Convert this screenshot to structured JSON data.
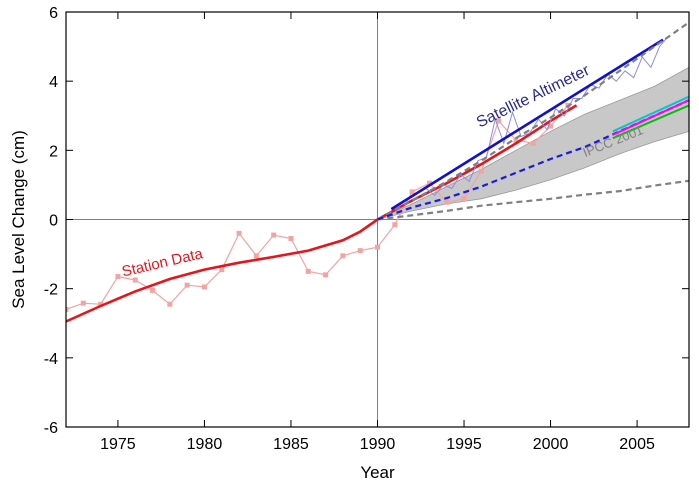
{
  "chart_data": {
    "type": "line",
    "xlabel": "Year",
    "ylabel": "Sea Level Change (cm)",
    "xlim": [
      1972,
      2008
    ],
    "ylim": [
      -6,
      6
    ],
    "x_ticks": [
      1975,
      1980,
      1985,
      1990,
      1995,
      2000,
      2005
    ],
    "y_ticks": [
      -6,
      -4,
      -2,
      0,
      2,
      4,
      6
    ],
    "reference_lines": {
      "x": 1990,
      "y": 0
    },
    "annotations": [
      {
        "text": "Station Data",
        "color": "#e8141c",
        "x": 1975.3,
        "y": -1.65,
        "angle": -13,
        "size": 15
      },
      {
        "text": "Satellite Altimeter",
        "color": "#2b2b8f",
        "x": 1995.9,
        "y": 2.65,
        "angle": -26,
        "size": 16
      },
      {
        "text": "IPCC 2001",
        "color": "#808080",
        "x": 2002,
        "y": 1.8,
        "angle": -22,
        "size": 13
      }
    ],
    "series": [
      {
        "name": "Station Data (annual)",
        "style": "markers-line",
        "color": "#f4a3a3",
        "x": [
          1972,
          1973,
          1974,
          1975,
          1976,
          1977,
          1978,
          1979,
          1980,
          1981,
          1982,
          1983,
          1984,
          1985,
          1986,
          1987,
          1988,
          1989,
          1990,
          1991,
          1992,
          1993,
          1994,
          1995,
          1996,
          1997,
          1998,
          1999,
          2000,
          2001
        ],
        "y": [
          -2.6,
          -2.42,
          -2.45,
          -1.65,
          -1.75,
          -2.05,
          -2.45,
          -1.9,
          -1.95,
          -1.45,
          -0.4,
          -1.05,
          -0.45,
          -0.55,
          -1.5,
          -1.6,
          -1.05,
          -0.9,
          -0.8,
          -0.15,
          0.8,
          1.05,
          0.5,
          0.6,
          1.4,
          2.85,
          2.3,
          2.2,
          2.7,
          3.3
        ]
      },
      {
        "name": "Station Data (trend)",
        "style": "line",
        "color": "#e8141c",
        "x": [
          1972,
          1974,
          1976,
          1978,
          1980,
          1982,
          1984,
          1986,
          1988,
          1989,
          1990,
          1992,
          1994,
          1996,
          1998,
          2000,
          2001.5
        ],
        "y": [
          -2.95,
          -2.5,
          -2.08,
          -1.72,
          -1.45,
          -1.25,
          -1.08,
          -0.9,
          -0.6,
          -0.35,
          0.0,
          0.55,
          1.05,
          1.6,
          2.2,
          2.85,
          3.3
        ]
      },
      {
        "name": "Satellite Altimeter (monthly)",
        "style": "thin-line",
        "color": "#8b8be8",
        "x": [
          1992.8,
          1993.3,
          1993.8,
          1994.3,
          1994.8,
          1995.3,
          1995.8,
          1996.3,
          1996.8,
          1997.3,
          1997.8,
          1998.3,
          1998.8,
          1999.3,
          1999.8,
          2000.3,
          2000.8,
          2001.3,
          2001.8,
          2002.3,
          2002.8,
          2003.3,
          2003.8,
          2004.3,
          2004.8,
          2005.3,
          2005.8,
          2006.3,
          2006.8
        ],
        "y": [
          0.9,
          0.7,
          1.0,
          0.9,
          1.3,
          1.1,
          1.7,
          1.8,
          2.9,
          2.2,
          3.1,
          2.4,
          2.5,
          2.9,
          2.6,
          3.2,
          3.0,
          3.5,
          3.5,
          3.9,
          3.8,
          4.2,
          4.0,
          4.3,
          4.1,
          4.7,
          4.4,
          5.0,
          5.3
        ]
      },
      {
        "name": "Satellite Altimeter (trend)",
        "style": "line",
        "color": "#1010d0",
        "x": [
          1990.8,
          2006.5
        ],
        "y": [
          0.3,
          5.2
        ]
      },
      {
        "name": "IPCC 2001 upper",
        "style": "dashed",
        "color": "#808080",
        "x": [
          1990,
          1992,
          1994,
          1996,
          1998,
          2000,
          2002,
          2004,
          2006,
          2008
        ],
        "y": [
          0.0,
          0.55,
          1.1,
          1.7,
          2.35,
          2.95,
          3.6,
          4.3,
          5.0,
          5.7
        ]
      },
      {
        "name": "IPCC 2001 lower",
        "style": "dashed",
        "color": "#808080",
        "x": [
          1990,
          1992,
          1994,
          1996,
          1998,
          2000,
          2002,
          2004,
          2006,
          2008
        ],
        "y": [
          0.0,
          0.12,
          0.25,
          0.4,
          0.5,
          0.6,
          0.72,
          0.82,
          0.98,
          1.12
        ]
      },
      {
        "name": "IPCC 2001 central",
        "style": "dashed",
        "color": "#1a1ae0",
        "x": [
          1990,
          1992,
          1994,
          1996,
          1998,
          2000,
          2002,
          2004,
          2006,
          2008
        ],
        "y": [
          0.0,
          0.35,
          0.62,
          0.95,
          1.35,
          1.75,
          2.1,
          2.55,
          3.0,
          3.45
        ]
      }
    ],
    "bands": [
      {
        "name": "IPCC 2001 range",
        "color": "#c8c8c8",
        "x": [
          1990,
          1992,
          1994,
          1996,
          1998,
          2000,
          2002,
          2004,
          2006,
          2008
        ],
        "upper": [
          0.0,
          0.45,
          0.95,
          1.45,
          2.0,
          2.55,
          3.05,
          3.45,
          3.85,
          4.4
        ],
        "lower": [
          0.0,
          0.25,
          0.45,
          0.6,
          0.85,
          1.15,
          1.5,
          1.9,
          2.25,
          2.55
        ]
      }
    ],
    "scenario_lines": [
      {
        "color": "#ff00ff",
        "x": [
          2003.6,
          2008
        ],
        "y": [
          2.45,
          3.45
        ]
      },
      {
        "color": "#00c000",
        "x": [
          2003.6,
          2008
        ],
        "y": [
          2.35,
          3.3
        ]
      },
      {
        "color": "#00c8c8",
        "x": [
          2003.6,
          2008
        ],
        "y": [
          2.55,
          3.55
        ]
      }
    ]
  }
}
